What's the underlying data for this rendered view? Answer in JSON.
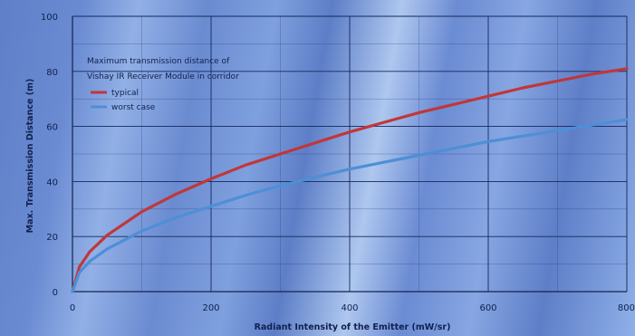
{
  "chart_data": {
    "type": "line",
    "title": "",
    "xlabel": "Radiant Intensity of the Emitter (mW/sr)",
    "ylabel": "Max. Transmission Distance (m)",
    "xlim": [
      0,
      800
    ],
    "ylim": [
      0,
      100
    ],
    "xticks": [
      0,
      200,
      400,
      600,
      800
    ],
    "yticks": [
      0,
      20,
      40,
      60,
      80,
      100
    ],
    "grid": true,
    "legend": {
      "placement": "top-left",
      "title_line1": "Maximum transmission distance of",
      "title_line2": "Vishay IR Receiver Module in corridor"
    },
    "series": [
      {
        "name": "typical",
        "color": "#c0373a",
        "x": [
          0,
          10,
          25,
          50,
          100,
          150,
          200,
          250,
          300,
          350,
          400,
          450,
          500,
          550,
          600,
          650,
          700,
          750,
          800
        ],
        "y": [
          0,
          9,
          14.5,
          20.5,
          29,
          35.5,
          41,
          46,
          50,
          54,
          58,
          61.5,
          65,
          68,
          71,
          74,
          76.5,
          79,
          81
        ]
      },
      {
        "name": "worst case",
        "color": "#4e8fd6",
        "x": [
          0,
          10,
          25,
          50,
          100,
          150,
          200,
          250,
          300,
          350,
          400,
          450,
          500,
          550,
          600,
          650,
          700,
          750,
          800
        ],
        "y": [
          0,
          7,
          11,
          15.5,
          22,
          27,
          31,
          35,
          38.5,
          41.5,
          44.5,
          47,
          49.5,
          52,
          54.5,
          56.5,
          58.5,
          60.5,
          62.5
        ]
      }
    ]
  }
}
